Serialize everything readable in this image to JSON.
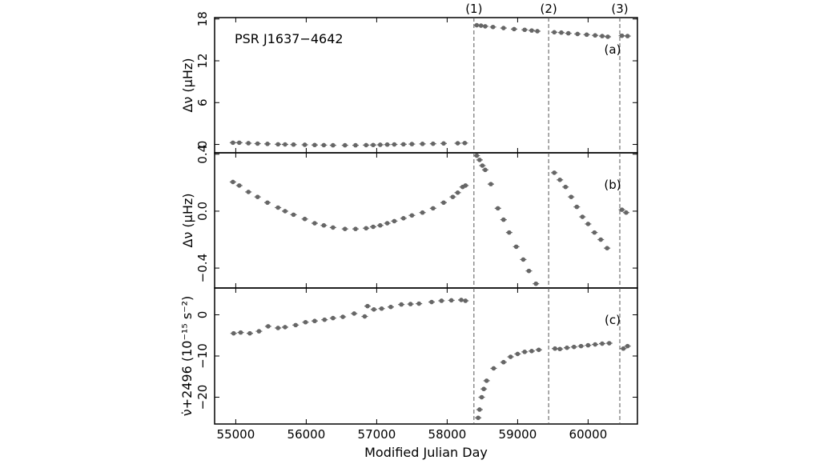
{
  "chart_data": [
    {
      "type": "scatter",
      "panel": "(a)",
      "annotation": "PSR J1637−4642",
      "ylabel": "Δν (μHz)",
      "xlabel": "Modified Julian Day",
      "xlim": [
        54700,
        60700
      ],
      "ylim": [
        -1.2,
        18.2
      ],
      "xticks": [
        "55000",
        "56000",
        "57000",
        "58000",
        "59000",
        "60000"
      ],
      "yticks": [
        "0",
        "6",
        "12",
        "18"
      ],
      "ytick_values": [
        0,
        6,
        12,
        18
      ],
      "marker_color": "#666666",
      "series": [
        {
          "points": [
            [
              54960,
              0.25
            ],
            [
              55050,
              0.25
            ],
            [
              55180,
              0.18
            ],
            [
              55310,
              0.12
            ],
            [
              55450,
              0.08
            ],
            [
              55600,
              0.02
            ],
            [
              55700,
              0.0
            ],
            [
              55820,
              -0.02
            ],
            [
              55980,
              -0.05
            ],
            [
              56120,
              -0.08
            ],
            [
              56250,
              -0.1
            ],
            [
              56380,
              -0.12
            ],
            [
              56550,
              -0.12
            ],
            [
              56700,
              -0.12
            ],
            [
              56850,
              -0.1
            ],
            [
              56950,
              -0.08
            ],
            [
              57050,
              -0.05
            ],
            [
              57150,
              -0.02
            ],
            [
              57250,
              0.0
            ],
            [
              57380,
              0.02
            ],
            [
              57500,
              0.05
            ],
            [
              57650,
              0.08
            ],
            [
              57800,
              0.1
            ],
            [
              57950,
              0.14
            ],
            [
              58150,
              0.17
            ],
            [
              58250,
              0.2
            ],
            [
              58420,
              17.1
            ],
            [
              58480,
              17.05
            ],
            [
              58540,
              16.95
            ],
            [
              58650,
              16.85
            ],
            [
              58800,
              16.7
            ],
            [
              58950,
              16.55
            ],
            [
              59100,
              16.45
            ],
            [
              59200,
              16.35
            ],
            [
              59280,
              16.25
            ],
            [
              59520,
              16.1
            ],
            [
              59620,
              16.05
            ],
            [
              59720,
              15.95
            ],
            [
              59850,
              15.85
            ],
            [
              59980,
              15.75
            ],
            [
              60100,
              15.65
            ],
            [
              60200,
              15.55
            ],
            [
              60280,
              15.45
            ],
            [
              60480,
              15.6
            ],
            [
              60560,
              15.55
            ]
          ]
        }
      ],
      "glitches": [
        {
          "label": "(1)",
          "mjd": 58380
        },
        {
          "label": "(2)",
          "mjd": 59440
        },
        {
          "label": "(3)",
          "mjd": 60450
        }
      ]
    },
    {
      "type": "scatter",
      "panel": "(b)",
      "ylabel": "Δν (μHz)",
      "xlim": [
        54700,
        60700
      ],
      "ylim": [
        -0.54,
        0.41
      ],
      "yticks": [
        "−0.4",
        "0.0",
        "0.4"
      ],
      "ytick_values": [
        -0.4,
        0.0,
        0.4
      ],
      "marker_color": "#666666",
      "series": [
        {
          "points": [
            [
              54960,
              0.205
            ],
            [
              55050,
              0.18
            ],
            [
              55180,
              0.135
            ],
            [
              55310,
              0.1
            ],
            [
              55450,
              0.06
            ],
            [
              55600,
              0.025
            ],
            [
              55700,
              0.0
            ],
            [
              55820,
              -0.025
            ],
            [
              55980,
              -0.055
            ],
            [
              56120,
              -0.085
            ],
            [
              56250,
              -0.1
            ],
            [
              56380,
              -0.115
            ],
            [
              56550,
              -0.125
            ],
            [
              56700,
              -0.125
            ],
            [
              56850,
              -0.12
            ],
            [
              56950,
              -0.11
            ],
            [
              57050,
              -0.1
            ],
            [
              57150,
              -0.085
            ],
            [
              57250,
              -0.07
            ],
            [
              57380,
              -0.05
            ],
            [
              57500,
              -0.03
            ],
            [
              57650,
              -0.01
            ],
            [
              57800,
              0.02
            ],
            [
              57950,
              0.06
            ],
            [
              58080,
              0.1
            ],
            [
              58150,
              0.13
            ],
            [
              58220,
              0.17
            ],
            [
              58260,
              0.18
            ],
            [
              58420,
              0.39
            ],
            [
              58460,
              0.36
            ],
            [
              58500,
              0.32
            ],
            [
              58540,
              0.29
            ],
            [
              58620,
              0.19
            ],
            [
              58720,
              0.02
            ],
            [
              58800,
              -0.06
            ],
            [
              58880,
              -0.15
            ],
            [
              58980,
              -0.25
            ],
            [
              59080,
              -0.34
            ],
            [
              59160,
              -0.42
            ],
            [
              59260,
              -0.51
            ],
            [
              59520,
              0.27
            ],
            [
              59600,
              0.22
            ],
            [
              59680,
              0.17
            ],
            [
              59760,
              0.1
            ],
            [
              59840,
              0.03
            ],
            [
              59920,
              -0.04
            ],
            [
              60000,
              -0.09
            ],
            [
              60090,
              -0.15
            ],
            [
              60180,
              -0.2
            ],
            [
              60270,
              -0.26
            ],
            [
              60480,
              0.01
            ],
            [
              60540,
              -0.01
            ]
          ]
        }
      ]
    },
    {
      "type": "scatter",
      "panel": "(c)",
      "ylabel": "ν̇+2496 (10⁻¹⁵ s⁻²)",
      "xlim": [
        54700,
        60700
      ],
      "ylim": [
        -26.5,
        6.5
      ],
      "yticks": [
        "−20",
        "−10",
        "0"
      ],
      "ytick_values": [
        -20,
        -10,
        0
      ],
      "marker_color": "#666666",
      "series": [
        {
          "points": [
            [
              54970,
              -4.5
            ],
            [
              55070,
              -4.3
            ],
            [
              55200,
              -4.5
            ],
            [
              55330,
              -4.0
            ],
            [
              55460,
              -2.8
            ],
            [
              55600,
              -3.2
            ],
            [
              55700,
              -3.0
            ],
            [
              55850,
              -2.5
            ],
            [
              55990,
              -1.8
            ],
            [
              56120,
              -1.5
            ],
            [
              56260,
              -1.2
            ],
            [
              56380,
              -0.8
            ],
            [
              56520,
              -0.5
            ],
            [
              56680,
              0.3
            ],
            [
              56830,
              -0.4
            ],
            [
              56870,
              2.1
            ],
            [
              56960,
              1.3
            ],
            [
              57070,
              1.5
            ],
            [
              57200,
              1.9
            ],
            [
              57350,
              2.5
            ],
            [
              57480,
              2.6
            ],
            [
              57600,
              2.7
            ],
            [
              57780,
              3.1
            ],
            [
              57920,
              3.4
            ],
            [
              58060,
              3.5
            ],
            [
              58200,
              3.6
            ],
            [
              58260,
              3.4
            ],
            [
              58440,
              -25.0
            ],
            [
              58460,
              -23.0
            ],
            [
              58490,
              -20.0
            ],
            [
              58520,
              -18.0
            ],
            [
              58560,
              -16.0
            ],
            [
              58660,
              -13.0
            ],
            [
              58800,
              -11.5
            ],
            [
              58900,
              -10.2
            ],
            [
              59000,
              -9.5
            ],
            [
              59100,
              -9.0
            ],
            [
              59200,
              -8.8
            ],
            [
              59300,
              -8.5
            ],
            [
              59530,
              -8.2
            ],
            [
              59600,
              -8.3
            ],
            [
              59700,
              -8.0
            ],
            [
              59800,
              -7.8
            ],
            [
              59900,
              -7.6
            ],
            [
              60000,
              -7.4
            ],
            [
              60100,
              -7.2
            ],
            [
              60200,
              -7.0
            ],
            [
              60300,
              -6.9
            ],
            [
              60500,
              -8.2
            ],
            [
              60560,
              -7.6
            ]
          ]
        }
      ]
    }
  ]
}
